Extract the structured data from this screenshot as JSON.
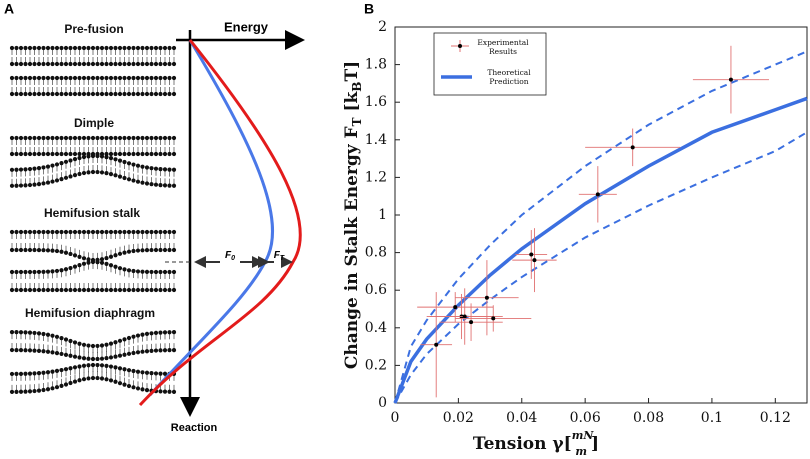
{
  "panel_a": {
    "label": "A",
    "stages": [
      "Pre-fusion",
      "Dimple",
      "Hemifusion stalk",
      "Hemifusion diaphragm"
    ],
    "energy_label": "Energy",
    "reaction_label": "Reaction",
    "f0_label": [
      "F",
      "0"
    ],
    "ft_label": [
      "F",
      "T"
    ]
  },
  "chart_data": {
    "type": "scatter",
    "panel_label": "B",
    "xlabel": [
      "Tension γ[",
      "mN",
      "m",
      "]"
    ],
    "ylabel": [
      "Change in Stalk Energy F",
      "T",
      " [k",
      "B",
      "T]"
    ],
    "xlim": [
      0,
      0.13
    ],
    "ylim": [
      0,
      2
    ],
    "xticks": [
      0,
      0.02,
      0.04,
      0.06,
      0.08,
      0.1,
      0.12
    ],
    "yticks": [
      0,
      0.2,
      0.4,
      0.6,
      0.8,
      1,
      1.2,
      1.4,
      1.6,
      1.8,
      2
    ],
    "series": [
      {
        "name": "Experimental Results",
        "type": "scatter",
        "color": "#000000",
        "error_color": "#e07070",
        "x": [
          0.013,
          0.019,
          0.021,
          0.022,
          0.024,
          0.029,
          0.031,
          0.043,
          0.044,
          0.064,
          0.075,
          0.106
        ],
        "values": [
          0.31,
          0.51,
          0.46,
          0.46,
          0.43,
          0.56,
          0.45,
          0.79,
          0.76,
          1.11,
          1.36,
          1.72
        ],
        "x_err": [
          0.005,
          0.012,
          0.01,
          0.012,
          0.01,
          0.01,
          0.012,
          0.005,
          0.007,
          0.006,
          0.015,
          0.012
        ],
        "y_err": [
          0.28,
          0.08,
          0.12,
          0.15,
          0.1,
          0.2,
          0.07,
          0.13,
          0.17,
          0.15,
          0.1,
          0.18
        ]
      },
      {
        "name": "Theoretical Prediction",
        "type": "line",
        "color": "#3b6fe0",
        "x": [
          0,
          0.005,
          0.01,
          0.02,
          0.03,
          0.04,
          0.06,
          0.08,
          0.1,
          0.12,
          0.13
        ],
        "values": [
          0,
          0.22,
          0.34,
          0.52,
          0.68,
          0.82,
          1.06,
          1.26,
          1.44,
          1.56,
          1.62
        ],
        "upper": [
          0,
          0.3,
          0.44,
          0.66,
          0.84,
          1.0,
          1.26,
          1.48,
          1.66,
          1.8,
          1.87
        ],
        "lower": [
          0,
          0.15,
          0.26,
          0.42,
          0.55,
          0.67,
          0.88,
          1.05,
          1.2,
          1.34,
          1.44
        ]
      }
    ]
  }
}
